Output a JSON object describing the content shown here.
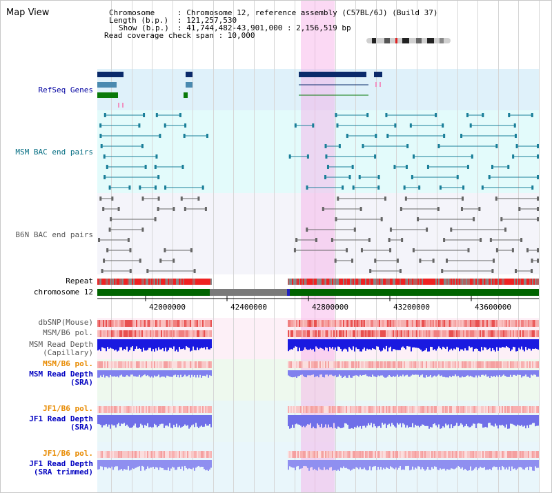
{
  "view_title": "Map View",
  "info": {
    "chromosome_key": "Chromosome",
    "chromosome_val": ": Chromosome 12, reference assembly (C57BL/6J) (Build 37)",
    "length_key": "Length (b.p.)",
    "length_val": ": 121,257,530",
    "show_key": "Show (b.p.)",
    "show_val": ": 41,744,482-43,901,000 : 2,156,519 bp",
    "coverage_text": "Read coverage check span : 10,000"
  },
  "tracks": {
    "refseq": "RefSeq Genes",
    "msm_bac": "MSM BAC end pairs",
    "b6n_bac": "B6N BAC end pairs",
    "repeat": "Repeat",
    "chromosome": "chromosome 12",
    "dbsnp": "dbSNP(Mouse)",
    "msm_b6_pol_1": "MSM/B6 pol.",
    "msm_read_depth_cap": "MSM Read Depth\n(Capillary)",
    "msm_b6_pol_2": "MSM/B6 pol.",
    "msm_read_depth_sra": "MSM Read Depth\n(SRA)",
    "jf1_b6_pol_1": "JF1/B6 pol.",
    "jf1_read_depth_sra": "JF1 Read Depth\n(SRA)",
    "jf1_b6_pol_2": "JF1/B6 pol.",
    "jf1_read_depth_trim": "JF1 Read Depth\n(SRA trimmed)"
  },
  "axis": {
    "ticks": [
      "42000000",
      "42400000",
      "42800000",
      "43200000",
      "43600000"
    ]
  },
  "colors": {
    "refseq_blue": "#0000a0",
    "msm_teal": "#006b80",
    "b6n_gray": "#555555",
    "pol_orange": "#e88a00",
    "chromosome_green": "#006400",
    "highlight_pink": "#f7aae6"
  }
}
